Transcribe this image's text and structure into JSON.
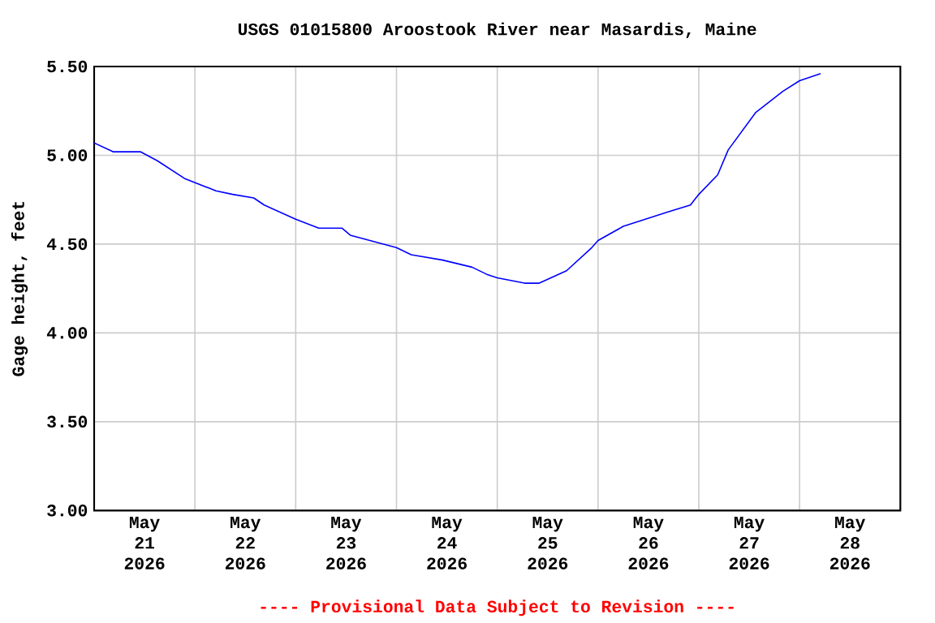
{
  "chart_data": {
    "type": "line",
    "title": "USGS 01015800 Aroostook River near Masardis, Maine",
    "ylabel": "Gage height, feet",
    "annotations": [
      "---- Provisional Data Subject to Revision ----"
    ],
    "x": [
      "2026-05-21T00:00",
      "2026-05-21T04:30",
      "2026-05-21T11:00",
      "2026-05-21T15:00",
      "2026-05-21T21:30",
      "2026-05-22T05:00",
      "2026-05-22T09:00",
      "2026-05-22T14:00",
      "2026-05-22T16:30",
      "2026-05-23T00:00",
      "2026-05-23T05:30",
      "2026-05-23T11:00",
      "2026-05-23T13:00",
      "2026-05-24T00:00",
      "2026-05-24T03:30",
      "2026-05-24T11:00",
      "2026-05-24T18:00",
      "2026-05-24T21:30",
      "2026-05-25T00:00",
      "2026-05-25T06:30",
      "2026-05-25T10:00",
      "2026-05-25T16:30",
      "2026-05-25T22:30",
      "2026-05-26T00:00",
      "2026-05-26T06:00",
      "2026-05-26T16:30",
      "2026-05-26T22:00",
      "2026-05-27T00:00",
      "2026-05-27T04:30",
      "2026-05-27T07:00",
      "2026-05-27T13:30",
      "2026-05-27T20:00",
      "2026-05-28T00:00",
      "2026-05-28T05:00"
    ],
    "values": [
      5.07,
      5.02,
      5.02,
      4.97,
      4.87,
      4.8,
      4.78,
      4.76,
      4.72,
      4.64,
      4.59,
      4.59,
      4.55,
      4.48,
      4.44,
      4.41,
      4.37,
      4.33,
      4.31,
      4.28,
      4.28,
      4.35,
      4.48,
      4.52,
      4.6,
      4.68,
      4.72,
      4.78,
      4.89,
      5.03,
      5.24,
      5.36,
      5.42,
      5.46
    ],
    "color": "#0000ff",
    "xlim": [
      "2026-05-21T00:00",
      "2026-05-29T00:00"
    ],
    "xticks": [
      {
        "value": "2026-05-21T00:00",
        "label": null
      },
      {
        "value": "2026-05-22T00:00",
        "label": null
      },
      {
        "value": "2026-05-23T00:00",
        "label": null
      },
      {
        "value": "2026-05-24T00:00",
        "label": null
      },
      {
        "value": "2026-05-25T00:00",
        "label": null
      },
      {
        "value": "2026-05-26T00:00",
        "label": null
      },
      {
        "value": "2026-05-27T00:00",
        "label": null
      },
      {
        "value": "2026-05-28T00:00",
        "label": null
      },
      {
        "value": "2026-05-29T00:00",
        "label": null
      },
      {
        "value": "2026-05-21T12:00",
        "label": "May 21 2026"
      },
      {
        "value": "2026-05-22T12:00",
        "label": "May 22 2026"
      },
      {
        "value": "2026-05-23T12:00",
        "label": "May 23 2026"
      },
      {
        "value": "2026-05-24T12:00",
        "label": "May 24 2026"
      },
      {
        "value": "2026-05-25T12:00",
        "label": "May 25 2026"
      },
      {
        "value": "2026-05-26T12:00",
        "label": "May 26 2026"
      },
      {
        "value": "2026-05-27T12:00",
        "label": "May 27 2026"
      },
      {
        "value": "2026-05-28T12:00",
        "label": "May 28 2026"
      }
    ],
    "ylim": [
      3.0,
      5.5
    ],
    "yticks": [
      {
        "value": 3.0,
        "label": "3.00"
      },
      {
        "value": 3.5,
        "label": "3.50"
      },
      {
        "value": 4.0,
        "label": "4.00"
      },
      {
        "value": 4.5,
        "label": "4.50"
      },
      {
        "value": 5.0,
        "label": "5.00"
      },
      {
        "value": 5.5,
        "label": "5.50"
      }
    ],
    "grid": true,
    "marker": "none",
    "line_style": "solid"
  }
}
